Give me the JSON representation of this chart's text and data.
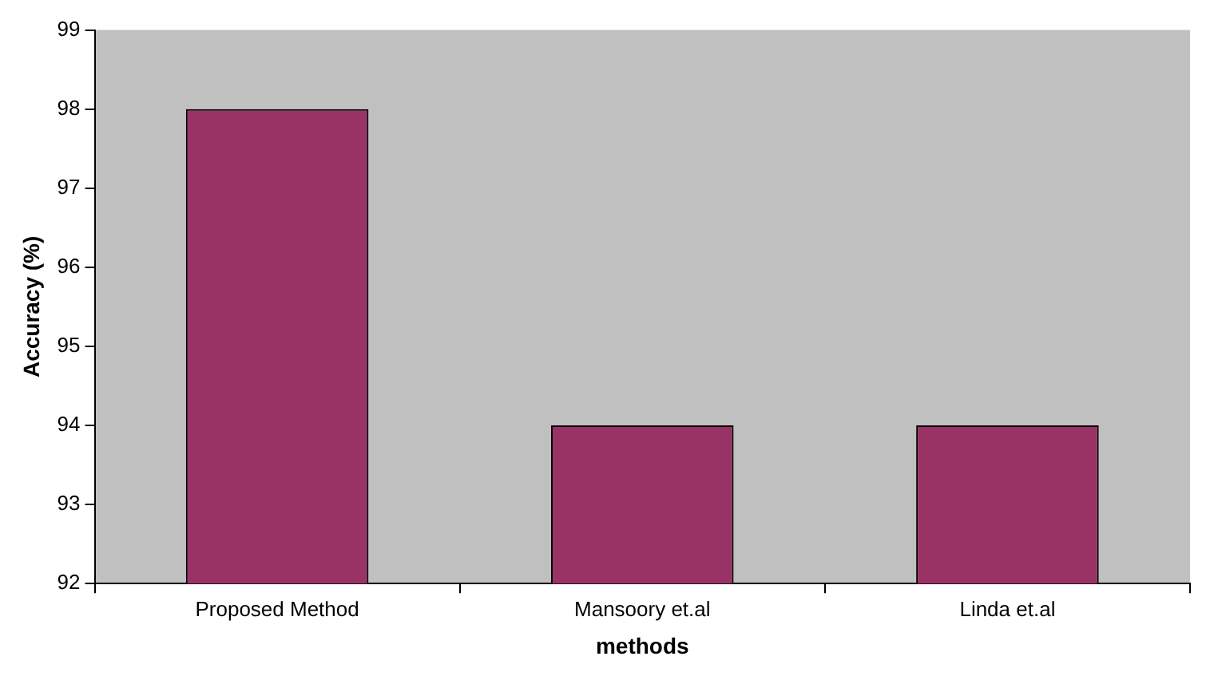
{
  "chart_data": {
    "type": "bar",
    "xlabel": "methods",
    "ylabel": "Accuracy (%)",
    "categories": [
      "Proposed Method",
      "Mansoory et.al",
      "Linda et.al"
    ],
    "values": [
      98,
      94,
      94
    ],
    "color": "#993366",
    "ylim": [
      92,
      99
    ],
    "yticks": [
      92,
      93,
      94,
      95,
      96,
      97,
      98,
      99
    ],
    "grid": false,
    "legend": false
  }
}
